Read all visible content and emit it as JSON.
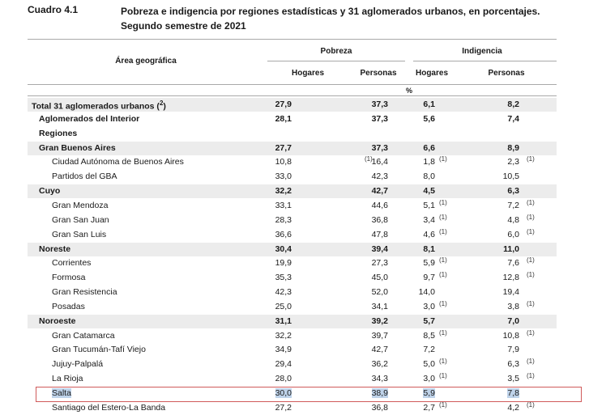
{
  "caption": {
    "label": "Cuadro 4.1",
    "title": "Pobreza e indigencia por regiones estadísticas y 31 aglomerados urbanos, en porcentajes. Segundo semestre de 2021"
  },
  "header": {
    "area": "Área geográfica",
    "groups": [
      "Pobreza",
      "Indigencia"
    ],
    "subcolumns": [
      "Hogares",
      "Personas",
      "Hogares",
      "Personas"
    ],
    "unit": "%"
  },
  "rows": [
    {
      "name": "Total 31 aglomerados urbanos",
      "sup": "2",
      "values": [
        "27,9",
        "37,3",
        "6,1",
        "8,2"
      ],
      "notes": [
        "",
        "",
        "",
        ""
      ],
      "bold": true,
      "indent": 0,
      "shaded": true
    },
    {
      "name": "Aglomerados del Interior",
      "sup": "",
      "values": [
        "28,1",
        "37,3",
        "5,6",
        "7,4"
      ],
      "notes": [
        "",
        "",
        "",
        ""
      ],
      "bold": true,
      "indent": 1,
      "shaded": false
    },
    {
      "name": "Regiones",
      "sup": "",
      "values": [
        "",
        "",
        "",
        ""
      ],
      "notes": [
        "",
        "",
        "",
        ""
      ],
      "bold": true,
      "indent": 1,
      "shaded": false
    },
    {
      "name": "Gran Buenos Aires",
      "sup": "",
      "values": [
        "27,7",
        "37,3",
        "6,6",
        "8,9"
      ],
      "notes": [
        "",
        "",
        "",
        ""
      ],
      "bold": true,
      "indent": 2,
      "shaded": true
    },
    {
      "name": "Ciudad Autónoma de Buenos Aires",
      "sup": "",
      "values": [
        "10,8",
        "16,4",
        "1,8",
        "2,3"
      ],
      "notes": [
        "",
        "1",
        "1",
        "1"
      ],
      "bold": false,
      "indent": 3,
      "shaded": false
    },
    {
      "name": "Partidos del GBA",
      "sup": "",
      "values": [
        "33,0",
        "42,3",
        "8,0",
        "10,5"
      ],
      "notes": [
        "",
        "",
        "",
        ""
      ],
      "bold": false,
      "indent": 3,
      "shaded": false
    },
    {
      "name": "Cuyo",
      "sup": "",
      "values": [
        "32,2",
        "42,7",
        "4,5",
        "6,3"
      ],
      "notes": [
        "",
        "",
        "",
        ""
      ],
      "bold": true,
      "indent": 2,
      "shaded": true
    },
    {
      "name": "Gran Mendoza",
      "sup": "",
      "values": [
        "33,1",
        "44,6",
        "5,1",
        "7,2"
      ],
      "notes": [
        "",
        "",
        "1",
        "1"
      ],
      "bold": false,
      "indent": 3,
      "shaded": false
    },
    {
      "name": "Gran San Juan",
      "sup": "",
      "values": [
        "28,3",
        "36,8",
        "3,4",
        "4,8"
      ],
      "notes": [
        "",
        "",
        "1",
        "1"
      ],
      "bold": false,
      "indent": 3,
      "shaded": false
    },
    {
      "name": "Gran San Luis",
      "sup": "",
      "values": [
        "36,6",
        "47,8",
        "4,6",
        "6,0"
      ],
      "notes": [
        "",
        "",
        "1",
        "1"
      ],
      "bold": false,
      "indent": 3,
      "shaded": false
    },
    {
      "name": "Noreste",
      "sup": "",
      "values": [
        "30,4",
        "39,4",
        "8,1",
        "11,0"
      ],
      "notes": [
        "",
        "",
        "",
        ""
      ],
      "bold": true,
      "indent": 2,
      "shaded": true
    },
    {
      "name": "Corrientes",
      "sup": "",
      "values": [
        "19,9",
        "27,3",
        "5,9",
        "7,6"
      ],
      "notes": [
        "",
        "",
        "1",
        "1"
      ],
      "bold": false,
      "indent": 3,
      "shaded": false
    },
    {
      "name": "Formosa",
      "sup": "",
      "values": [
        "35,3",
        "45,0",
        "9,7",
        "12,8"
      ],
      "notes": [
        "",
        "",
        "1",
        "1"
      ],
      "bold": false,
      "indent": 3,
      "shaded": false
    },
    {
      "name": "Gran Resistencia",
      "sup": "",
      "values": [
        "42,3",
        "52,0",
        "14,0",
        "19,4"
      ],
      "notes": [
        "",
        "",
        "",
        ""
      ],
      "bold": false,
      "indent": 3,
      "shaded": false
    },
    {
      "name": "Posadas",
      "sup": "",
      "values": [
        "25,0",
        "34,1",
        "3,0",
        "3,8"
      ],
      "notes": [
        "",
        "",
        "1",
        "1"
      ],
      "bold": false,
      "indent": 3,
      "shaded": false
    },
    {
      "name": "Noroeste",
      "sup": "",
      "values": [
        "31,1",
        "39,2",
        "5,7",
        "7,0"
      ],
      "notes": [
        "",
        "",
        "",
        ""
      ],
      "bold": true,
      "indent": 2,
      "shaded": true
    },
    {
      "name": "Gran Catamarca",
      "sup": "",
      "values": [
        "32,2",
        "39,7",
        "8,5",
        "10,8"
      ],
      "notes": [
        "",
        "",
        "1",
        "1"
      ],
      "bold": false,
      "indent": 3,
      "shaded": false
    },
    {
      "name": "Gran Tucumán-Tafí Viejo",
      "sup": "",
      "values": [
        "34,9",
        "42,7",
        "7,2",
        "7,9"
      ],
      "notes": [
        "",
        "",
        "",
        ""
      ],
      "bold": false,
      "indent": 3,
      "shaded": false
    },
    {
      "name": "Jujuy-Palpalá",
      "sup": "",
      "values": [
        "29,4",
        "36,2",
        "5,0",
        "6,3"
      ],
      "notes": [
        "",
        "",
        "1",
        "1"
      ],
      "bold": false,
      "indent": 3,
      "shaded": false
    },
    {
      "name": "La Rioja",
      "sup": "",
      "values": [
        "28,0",
        "34,3",
        "3,0",
        "3,5"
      ],
      "notes": [
        "",
        "",
        "1",
        "1"
      ],
      "bold": false,
      "indent": 3,
      "shaded": false
    },
    {
      "name": "Salta",
      "sup": "",
      "values": [
        "30,0",
        "38,9",
        "5,9",
        "7,8"
      ],
      "notes": [
        "",
        "",
        "",
        ""
      ],
      "bold": false,
      "indent": 3,
      "shaded": false,
      "selected": true
    },
    {
      "name": "Santiago del Estero-La Banda",
      "sup": "",
      "values": [
        "27,2",
        "36,8",
        "2,7",
        "4,2"
      ],
      "notes": [
        "",
        "",
        "1",
        "1"
      ],
      "bold": false,
      "indent": 3,
      "shaded": false
    }
  ]
}
